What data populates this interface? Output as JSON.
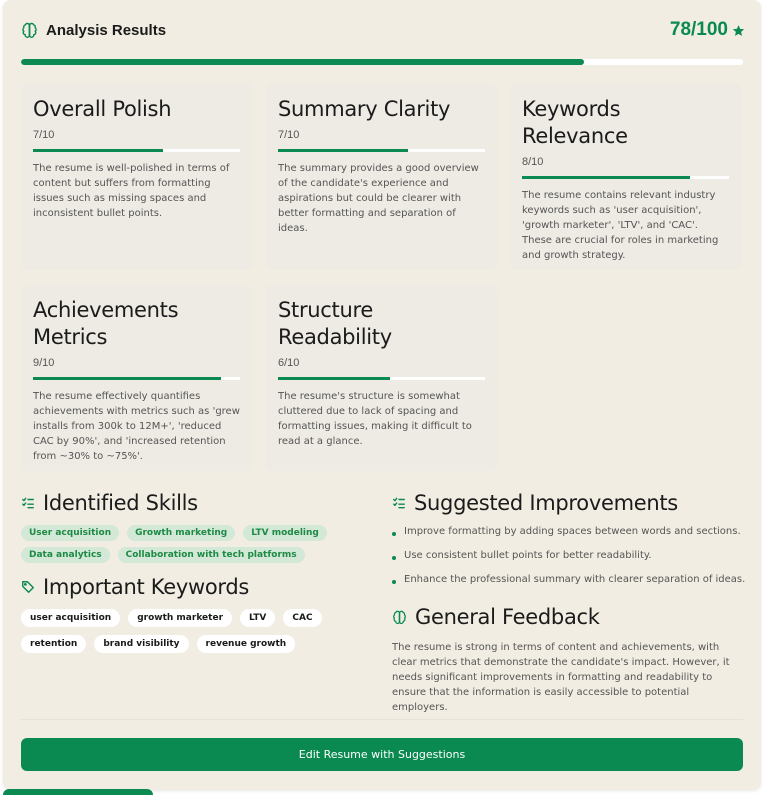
{
  "header": {
    "title": "Analysis Results",
    "score_text": "78/100",
    "score_value": 78,
    "score_max": 100,
    "progress_fraction": 0.78
  },
  "colors": {
    "accent": "#0a8a50",
    "panel_bg": "#f1ede2",
    "card_bg": "#eeebe4",
    "pill_green_bg": "#d3e8d6"
  },
  "cards": [
    {
      "title": "Overall Polish",
      "score": "7/10",
      "fraction": 0.7,
      "description": "The resume is well-polished in terms of content but suffers from formatting issues such as missing spaces and inconsistent bullet points."
    },
    {
      "title": "Summary Clarity",
      "score": "7/10",
      "fraction": 0.7,
      "description": "The summary provides a good overview of the candidate's experience and aspirations but could be clearer with better formatting and separation of ideas."
    },
    {
      "title": "Keywords Relevance",
      "score": "8/10",
      "fraction": 0.8,
      "description": "The resume contains relevant industry keywords such as 'user acquisition', 'growth marketer', 'LTV', and 'CAC'. These are crucial for roles in marketing and growth strategy."
    },
    {
      "title": "Achievements Metrics",
      "score": "9/10",
      "fraction": 0.9,
      "description": "The resume effectively quantifies achievements with metrics such as 'grew installs from 300k to 12M+', 'reduced CAC by 90%', and 'increased retention from ~30% to ~75%'."
    },
    {
      "title": "Structure Readability",
      "score": "6/10",
      "fraction": 0.6,
      "description": "The resume's structure is somewhat cluttered due to lack of spacing and formatting issues, making it difficult to read at a glance."
    }
  ],
  "skills": {
    "title": "Identified Skills",
    "items": [
      "User acquisition",
      "Growth marketing",
      "LTV modeling",
      "Data analytics",
      "Collaboration with tech platforms"
    ]
  },
  "keywords": {
    "title": "Important Keywords",
    "items": [
      "user acquisition",
      "growth marketer",
      "LTV",
      "CAC",
      "retention",
      "brand visibility",
      "revenue growth"
    ]
  },
  "improvements": {
    "title": "Suggested Improvements",
    "items": [
      "Improve formatting by adding spaces between words and sections.",
      "Use consistent bullet points for better readability.",
      "Enhance the professional summary with clearer separation of ideas."
    ]
  },
  "feedback": {
    "title": "General Feedback",
    "text": "The resume is strong in terms of content and achievements, with clear metrics that demonstrate the candidate's impact. However, it needs significant improvements in formatting and readability to ensure that the information is easily accessible to potential employers."
  },
  "cta": {
    "label": "Edit Resume with Suggestions"
  },
  "icons": {
    "header": "brain-icon",
    "score": "star-icon",
    "skills": "list-check-icon",
    "keywords": "tag-icon",
    "improvements": "list-check-icon",
    "feedback": "brain-icon"
  }
}
